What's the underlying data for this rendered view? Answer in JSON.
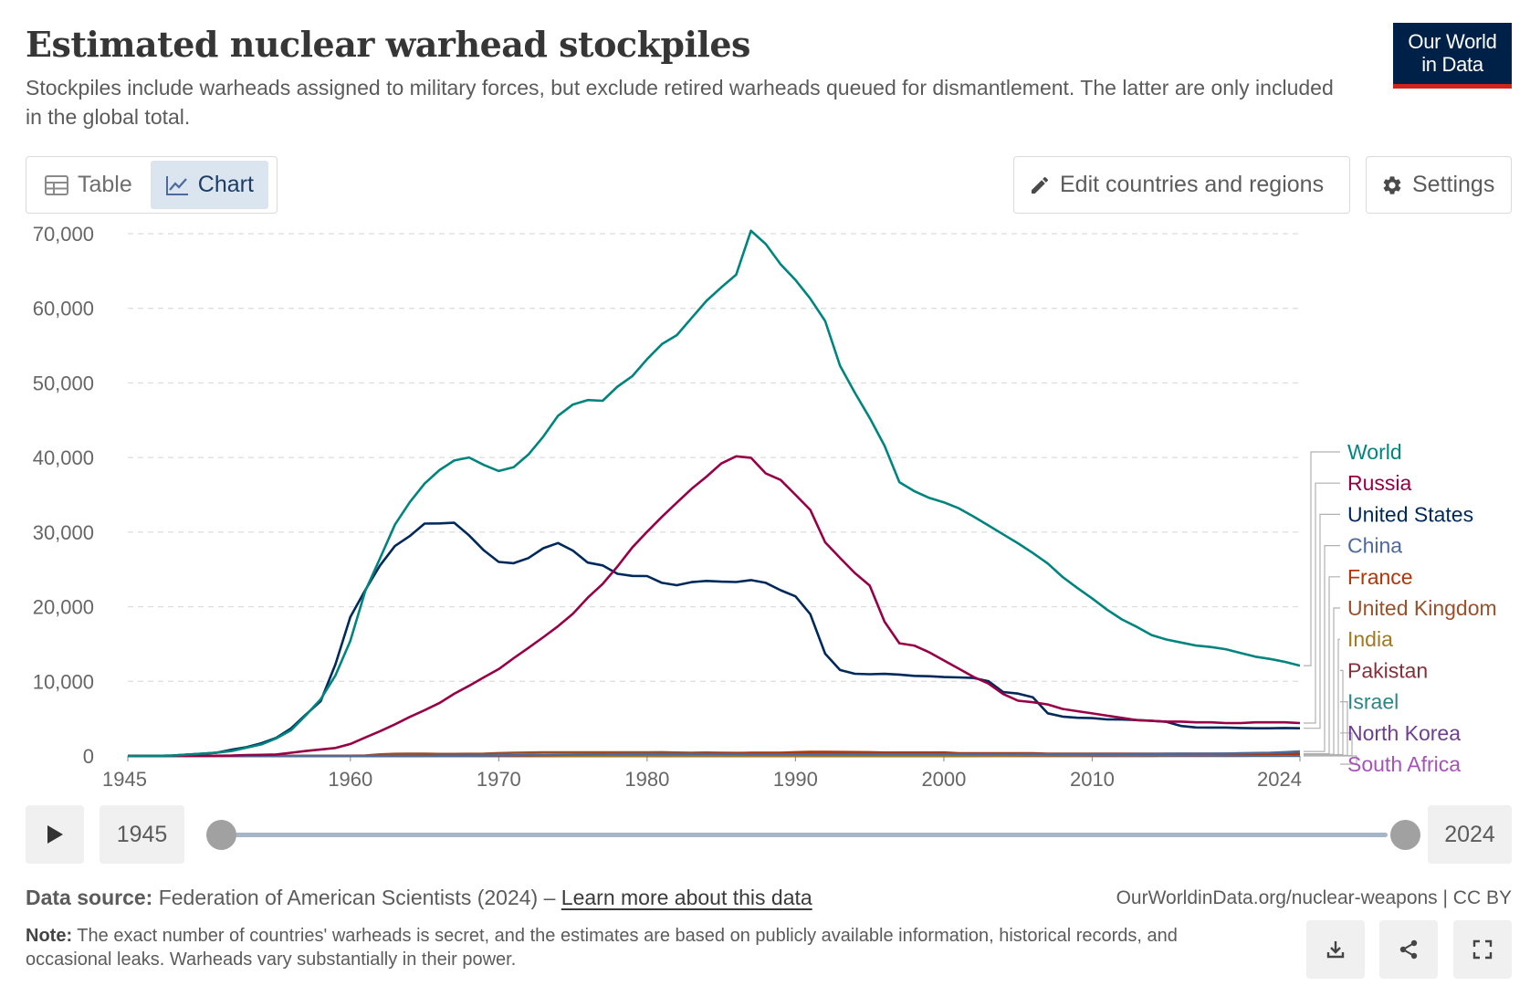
{
  "header": {
    "title": "Estimated nuclear warhead stockpiles",
    "subtitle": "Stockpiles include warheads assigned to military forces, but exclude retired warheads queued for dismantlement. The latter are only included in the global total.",
    "logo_line1": "Our World",
    "logo_line2": "in Data"
  },
  "tabs": [
    {
      "label": "Table",
      "icon": "table-icon",
      "active": false
    },
    {
      "label": "Chart",
      "icon": "line-chart-icon",
      "active": true
    }
  ],
  "toolbar": {
    "edit_label": "Edit countries and regions",
    "settings_label": "Settings"
  },
  "timeline": {
    "start_year": "1945",
    "end_year": "2024"
  },
  "footer": {
    "source_prefix": "Data source:",
    "source_text": " Federation of American Scientists (2024) – ",
    "learn_more": "Learn more about this data",
    "url": "OurWorldinData.org/nuclear-weapons | CC BY",
    "note_prefix": "Note:",
    "note_text": " The exact number of countries' warheads is secret, and the estimates are based on publicly available information, historical records, and occasional leaks. Warheads vary substantially in their power."
  },
  "colors": {
    "World": "#00847e",
    "Russia": "#970046",
    "United States": "#00295b",
    "China": "#4c6a9c",
    "France": "#b13507",
    "United Kingdom": "#9a5129",
    "India": "#a2791f",
    "Pakistan": "#883039",
    "Israel": "#2d8587",
    "North Korea": "#6d3e91",
    "South Africa": "#a652ba"
  },
  "chart_data": {
    "type": "line",
    "title": "Estimated nuclear warhead stockpiles",
    "xlabel": "",
    "ylabel": "",
    "xlim": [
      1945,
      2024
    ],
    "ylim": [
      0,
      70000
    ],
    "yticks": [
      0,
      10000,
      20000,
      30000,
      40000,
      50000,
      60000,
      70000
    ],
    "ytick_labels": [
      "0",
      "10,000",
      "20,000",
      "30,000",
      "40,000",
      "50,000",
      "60,000",
      "70,000"
    ],
    "xticks": [
      1945,
      1960,
      1970,
      1980,
      1990,
      2000,
      2010,
      2024
    ],
    "xtick_labels": [
      "1945",
      "1960",
      "1970",
      "1980",
      "1990",
      "2000",
      "2010",
      "2024"
    ],
    "grid": "horizontal-dashed",
    "legend": "right-end-labels",
    "x": [
      1945,
      1946,
      1947,
      1948,
      1949,
      1950,
      1951,
      1952,
      1953,
      1954,
      1955,
      1956,
      1957,
      1958,
      1959,
      1960,
      1961,
      1962,
      1963,
      1964,
      1965,
      1966,
      1967,
      1968,
      1969,
      1970,
      1971,
      1972,
      1973,
      1974,
      1975,
      1976,
      1977,
      1978,
      1979,
      1980,
      1981,
      1982,
      1983,
      1984,
      1985,
      1986,
      1987,
      1988,
      1989,
      1990,
      1991,
      1992,
      1993,
      1994,
      1995,
      1996,
      1997,
      1998,
      1999,
      2000,
      2001,
      2002,
      2003,
      2004,
      2005,
      2006,
      2007,
      2008,
      2009,
      2010,
      2011,
      2012,
      2013,
      2014,
      2015,
      2016,
      2017,
      2018,
      2019,
      2020,
      2021,
      2022,
      2023,
      2024
    ],
    "series": [
      {
        "name": "World",
        "values": [
          2,
          9,
          13,
          50,
          170,
          304,
          438,
          660,
          1100,
          1540,
          2350,
          3450,
          5450,
          7600,
          10800,
          15450,
          22100,
          26500,
          31000,
          34000,
          36500,
          38300,
          39600,
          40000,
          39000,
          38200,
          38700,
          40400,
          42800,
          45600,
          47100,
          47700,
          47600,
          49500,
          50900,
          53200,
          55200,
          56400,
          58700,
          61000,
          62800,
          64500,
          70400,
          68600,
          65900,
          63800,
          61300,
          58300,
          52300,
          48700,
          45300,
          41600,
          36700,
          35500,
          34600,
          34000,
          33200,
          32100,
          30900,
          29700,
          28500,
          27200,
          25800,
          24000,
          22500,
          21100,
          19600,
          18300,
          17300,
          16200,
          15600,
          15200,
          14800,
          14600,
          14300,
          13800,
          13300,
          13000,
          12600,
          12100
        ]
      },
      {
        "name": "Russia",
        "values": [
          0,
          0,
          0,
          0,
          1,
          5,
          25,
          50,
          120,
          150,
          200,
          426,
          660,
          869,
          1060,
          1605,
          2471,
          3322,
          4238,
          5221,
          6129,
          7089,
          8339,
          9399,
          10538,
          11643,
          13092,
          14478,
          15915,
          17385,
          19055,
          21205,
          23044,
          25393,
          27935,
          30062,
          32049,
          33952,
          35804,
          37431,
          39197,
          40159,
          39967,
          37863,
          37000,
          35000,
          32980,
          28640,
          26540,
          24530,
          22830,
          18000,
          15100,
          14800,
          13900,
          12800,
          11700,
          10600,
          9700,
          8300,
          7400,
          7200,
          6900,
          6300,
          6000,
          5700,
          5400,
          5100,
          4800,
          4700,
          4600,
          4600,
          4500,
          4500,
          4400,
          4400,
          4500,
          4500,
          4500,
          4400
        ]
      },
      {
        "name": "United States",
        "values": [
          2,
          9,
          13,
          50,
          170,
          299,
          438,
          841,
          1169,
          1703,
          2422,
          3692,
          5543,
          7345,
          12298,
          18638,
          22229,
          25540,
          28133,
          29463,
          31139,
          31175,
          31255,
          29561,
          27552,
          26008,
          25830,
          26516,
          27835,
          28537,
          27519,
          25914,
          25542,
          24418,
          24138,
          24104,
          23208,
          22886,
          23305,
          23459,
          23368,
          23317,
          23575,
          23205,
          22217,
          21392,
          19008,
          13708,
          11511,
          11011,
          10953,
          11000,
          10903,
          10732,
          10685,
          10577,
          10526,
          10457,
          10027,
          8570,
          8360,
          7853,
          5709,
          5273,
          5113,
          5066,
          4897,
          4881,
          4804,
          4717,
          4571,
          4018,
          3822,
          3800,
          3800,
          3750,
          3708,
          3708,
          3748,
          3708
        ]
      },
      {
        "name": "China",
        "values": [
          0,
          0,
          0,
          0,
          0,
          0,
          0,
          0,
          0,
          0,
          0,
          0,
          0,
          0,
          0,
          0,
          0,
          0,
          0,
          0,
          5,
          20,
          25,
          35,
          50,
          75,
          100,
          130,
          150,
          170,
          185,
          190,
          200,
          215,
          230,
          240,
          250,
          250,
          250,
          250,
          240,
          230,
          225,
          225,
          225,
          225,
          225,
          225,
          235,
          235,
          235,
          235,
          235,
          235,
          235,
          235,
          235,
          235,
          235,
          235,
          235,
          235,
          235,
          235,
          240,
          240,
          245,
          250,
          260,
          270,
          280,
          290,
          300,
          310,
          320,
          350,
          390,
          410,
          500,
          600
        ]
      },
      {
        "name": "France",
        "values": [
          0,
          0,
          0,
          0,
          0,
          0,
          0,
          0,
          0,
          0,
          0,
          0,
          0,
          0,
          0,
          0,
          0,
          0,
          0,
          4,
          32,
          36,
          36,
          36,
          36,
          36,
          45,
          70,
          116,
          145,
          188,
          212,
          228,
          235,
          235,
          250,
          274,
          274,
          279,
          280,
          360,
          355,
          420,
          410,
          410,
          505,
          540,
          540,
          525,
          510,
          500,
          450,
          450,
          450,
          450,
          470,
          350,
          350,
          350,
          350,
          350,
          350,
          300,
          300,
          300,
          300,
          300,
          300,
          300,
          300,
          300,
          300,
          300,
          300,
          300,
          300,
          290,
          290,
          290,
          290
        ]
      },
      {
        "name": "United Kingdom",
        "values": [
          0,
          0,
          0,
          0,
          0,
          0,
          0,
          0,
          1,
          5,
          10,
          14,
          20,
          22,
          25,
          30,
          50,
          205,
          280,
          310,
          310,
          270,
          270,
          280,
          308,
          375,
          420,
          450,
          492,
          492,
          492,
          492,
          492,
          492,
          492,
          492,
          500,
          450,
          425,
          450,
          422,
          400,
          400,
          400,
          400,
          400,
          350,
          350,
          300,
          250,
          250,
          300,
          300,
          280,
          280,
          280,
          280,
          280,
          280,
          280,
          280,
          280,
          225,
          225,
          225,
          225,
          225,
          225,
          225,
          225,
          215,
          215,
          215,
          215,
          195,
          195,
          195,
          225,
          225,
          225
        ]
      },
      {
        "name": "India",
        "values": [
          0,
          0,
          0,
          0,
          0,
          0,
          0,
          0,
          0,
          0,
          0,
          0,
          0,
          0,
          0,
          0,
          0,
          0,
          0,
          0,
          0,
          0,
          0,
          0,
          0,
          0,
          0,
          0,
          0,
          0,
          0,
          0,
          0,
          0,
          0,
          0,
          0,
          0,
          0,
          0,
          0,
          0,
          0,
          0,
          0,
          0,
          0,
          0,
          0,
          0,
          0,
          0,
          0,
          0,
          0,
          0,
          10,
          20,
          30,
          40,
          50,
          60,
          70,
          80,
          90,
          100,
          110,
          100,
          100,
          110,
          110,
          120,
          130,
          130,
          140,
          150,
          150,
          160,
          164,
          172
        ]
      },
      {
        "name": "Pakistan",
        "values": [
          0,
          0,
          0,
          0,
          0,
          0,
          0,
          0,
          0,
          0,
          0,
          0,
          0,
          0,
          0,
          0,
          0,
          0,
          0,
          0,
          0,
          0,
          0,
          0,
          0,
          0,
          0,
          0,
          0,
          0,
          0,
          0,
          0,
          0,
          0,
          0,
          0,
          0,
          0,
          0,
          0,
          0,
          0,
          0,
          0,
          0,
          0,
          0,
          0,
          0,
          0,
          0,
          0,
          0,
          0,
          0,
          10,
          25,
          35,
          40,
          50,
          60,
          65,
          70,
          80,
          90,
          100,
          110,
          120,
          120,
          130,
          140,
          140,
          150,
          150,
          160,
          165,
          165,
          170,
          170
        ]
      },
      {
        "name": "Israel",
        "values": [
          0,
          0,
          0,
          0,
          0,
          0,
          0,
          0,
          0,
          0,
          0,
          0,
          0,
          0,
          0,
          0,
          0,
          0,
          0,
          0,
          0,
          0,
          2,
          4,
          6,
          8,
          10,
          12,
          15,
          20,
          20,
          20,
          25,
          30,
          35,
          40,
          45,
          50,
          55,
          60,
          60,
          60,
          60,
          65,
          70,
          70,
          80,
          80,
          80,
          80,
          80,
          80,
          80,
          80,
          80,
          80,
          80,
          80,
          80,
          80,
          80,
          80,
          80,
          80,
          80,
          80,
          80,
          80,
          80,
          80,
          80,
          80,
          80,
          80,
          90,
          90,
          90,
          90,
          90,
          90
        ]
      },
      {
        "name": "North Korea",
        "values": [
          0,
          0,
          0,
          0,
          0,
          0,
          0,
          0,
          0,
          0,
          0,
          0,
          0,
          0,
          0,
          0,
          0,
          0,
          0,
          0,
          0,
          0,
          0,
          0,
          0,
          0,
          0,
          0,
          0,
          0,
          0,
          0,
          0,
          0,
          0,
          0,
          0,
          0,
          0,
          0,
          0,
          0,
          0,
          0,
          0,
          0,
          0,
          0,
          0,
          0,
          0,
          0,
          0,
          0,
          0,
          0,
          0,
          0,
          0,
          0,
          0,
          2,
          2,
          4,
          6,
          8,
          10,
          12,
          15,
          15,
          20,
          20,
          25,
          25,
          30,
          30,
          35,
          40,
          50,
          50
        ]
      },
      {
        "name": "South Africa",
        "values": [
          0,
          0,
          0,
          0,
          0,
          0,
          0,
          0,
          0,
          0,
          0,
          0,
          0,
          0,
          0,
          0,
          0,
          0,
          0,
          0,
          0,
          0,
          0,
          0,
          0,
          0,
          0,
          0,
          0,
          0,
          0,
          0,
          0,
          0,
          0,
          1,
          1,
          2,
          3,
          4,
          5,
          6,
          6,
          6,
          6,
          6,
          0,
          0,
          0,
          0,
          0,
          0,
          0,
          0,
          0,
          0,
          0,
          0,
          0,
          0,
          0,
          0,
          0,
          0,
          0,
          0,
          0,
          0,
          0,
          0,
          0,
          0,
          0,
          0,
          0,
          0,
          0,
          0,
          0,
          0
        ]
      }
    ]
  }
}
